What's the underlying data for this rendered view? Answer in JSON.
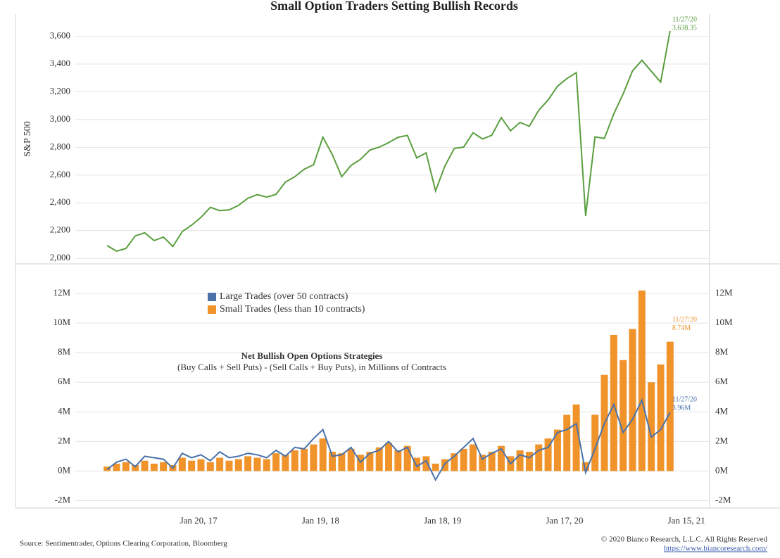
{
  "title": "Small Option Traders Setting Bullish Records",
  "source": "Source: Sentimentrader, Options Clearing Corporation, Bloomberg",
  "copyright": "© 2020 Bianco Research, L.L.C. All Rights Reserved",
  "url": "https://www.biancoresearch.com/",
  "chart_data": [
    {
      "type": "line",
      "ylabel": "S&P 500",
      "xlim": [
        "2016-01-18",
        "2021-03-25"
      ],
      "ylim": [
        1960,
        3760
      ],
      "yticks": [
        {
          "value": 2000,
          "label": "2,000"
        },
        {
          "value": 2200,
          "label": "2,200"
        },
        {
          "value": 2400,
          "label": "2,400"
        },
        {
          "value": 2600,
          "label": "2,600"
        },
        {
          "value": 2800,
          "label": "2,800"
        },
        {
          "value": 3000,
          "label": "3,000"
        },
        {
          "value": 3200,
          "label": "3,200"
        },
        {
          "value": 3400,
          "label": "3,400"
        },
        {
          "value": 3600,
          "label": "3,600"
        }
      ],
      "grid": true,
      "end_label": "11/27/20",
      "x": [
        "2016-04-22",
        "2016-05-20",
        "2016-06-17",
        "2016-07-15",
        "2016-08-12",
        "2016-09-09",
        "2016-10-07",
        "2016-11-04",
        "2016-12-02",
        "2016-12-30",
        "2017-01-27",
        "2017-02-24",
        "2017-03-24",
        "2017-04-21",
        "2017-05-19",
        "2017-06-16",
        "2017-07-14",
        "2017-08-11",
        "2017-09-08",
        "2017-10-06",
        "2017-11-03",
        "2017-12-01",
        "2017-12-29",
        "2018-01-26",
        "2018-02-23",
        "2018-03-23",
        "2018-04-20",
        "2018-05-18",
        "2018-06-15",
        "2018-07-13",
        "2018-08-10",
        "2018-09-07",
        "2018-10-05",
        "2018-11-02",
        "2018-11-30",
        "2018-12-28",
        "2019-01-25",
        "2019-02-22",
        "2019-03-22",
        "2019-04-19",
        "2019-05-17",
        "2019-06-14",
        "2019-07-12",
        "2019-08-09",
        "2019-09-06",
        "2019-10-04",
        "2019-11-01",
        "2019-11-29",
        "2019-12-27",
        "2020-01-24",
        "2020-02-21",
        "2020-03-20",
        "2020-04-17",
        "2020-05-15",
        "2020-06-12",
        "2020-07-10",
        "2020-08-07",
        "2020-09-04",
        "2020-10-02",
        "2020-10-30",
        "2020-11-27"
      ],
      "series": [
        {
          "name": "S&P 500",
          "color": "#5a9e3f",
          "values": [
            2092,
            2052,
            2071,
            2162,
            2184,
            2128,
            2153,
            2085,
            2192,
            2239,
            2295,
            2367,
            2344,
            2349,
            2382,
            2433,
            2459,
            2441,
            2461,
            2549,
            2588,
            2642,
            2674,
            2873,
            2747,
            2588,
            2670,
            2713,
            2780,
            2801,
            2833,
            2872,
            2886,
            2723,
            2760,
            2486,
            2665,
            2792,
            2801,
            2905,
            2860,
            2887,
            3014,
            2919,
            2979,
            2952,
            3067,
            3141,
            3240,
            3295,
            3338,
            2305,
            2875,
            2864,
            3041,
            3185,
            3351,
            3427,
            3348,
            3270,
            3638.35
          ],
          "end_value_label": "3,638.35"
        }
      ]
    },
    {
      "type": "combo",
      "subtitle": "Net Bullish Open Options Strategies",
      "note": "(Buy Calls + Sell Puts) - (Sell Calls + Buy Puts), in Millions of Contracts",
      "xlim": [
        "2016-01-18",
        "2021-03-25"
      ],
      "ylim": [
        -2.5,
        14
      ],
      "xticks": [
        {
          "value": "2017-01-20",
          "label": "Jan 20, 17"
        },
        {
          "value": "2018-01-19",
          "label": "Jan 19, 18"
        },
        {
          "value": "2019-01-18",
          "label": "Jan 18, 19"
        },
        {
          "value": "2020-01-17",
          "label": "Jan 17, 20"
        },
        {
          "value": "2021-01-15",
          "label": "Jan 15, 21"
        }
      ],
      "yticks": [
        {
          "value": -2,
          "label": "-2M"
        },
        {
          "value": 0,
          "label": "0M"
        },
        {
          "value": 2,
          "label": "2M"
        },
        {
          "value": 4,
          "label": "4M"
        },
        {
          "value": 6,
          "label": "6M"
        },
        {
          "value": 8,
          "label": "8M"
        },
        {
          "value": 10,
          "label": "10M"
        },
        {
          "value": 12,
          "label": "12M"
        }
      ],
      "y2lim": [
        -2.5,
        14
      ],
      "y2ticks": [
        {
          "value": -2,
          "label": "-2M"
        },
        {
          "value": 0,
          "label": "0M"
        },
        {
          "value": 2,
          "label": "2M"
        },
        {
          "value": 4,
          "label": "4M"
        },
        {
          "value": 6,
          "label": "6M"
        },
        {
          "value": 8,
          "label": "8M"
        },
        {
          "value": 10,
          "label": "10M"
        },
        {
          "value": 12,
          "label": "12M"
        }
      ],
      "grid": true,
      "legend": "top-left",
      "x": [
        "2016-04-22",
        "2016-05-20",
        "2016-06-17",
        "2016-07-15",
        "2016-08-12",
        "2016-09-09",
        "2016-10-07",
        "2016-11-04",
        "2016-12-02",
        "2016-12-30",
        "2017-01-27",
        "2017-02-24",
        "2017-03-24",
        "2017-04-21",
        "2017-05-19",
        "2017-06-16",
        "2017-07-14",
        "2017-08-11",
        "2017-09-08",
        "2017-10-06",
        "2017-11-03",
        "2017-12-01",
        "2017-12-29",
        "2018-01-26",
        "2018-02-23",
        "2018-03-23",
        "2018-04-20",
        "2018-05-18",
        "2018-06-15",
        "2018-07-13",
        "2018-08-10",
        "2018-09-07",
        "2018-10-05",
        "2018-11-02",
        "2018-11-30",
        "2018-12-28",
        "2019-01-25",
        "2019-02-22",
        "2019-03-22",
        "2019-04-19",
        "2019-05-17",
        "2019-06-14",
        "2019-07-12",
        "2019-08-09",
        "2019-09-06",
        "2019-10-04",
        "2019-11-01",
        "2019-11-29",
        "2019-12-27",
        "2020-01-24",
        "2020-02-21",
        "2020-03-20",
        "2020-04-17",
        "2020-05-15",
        "2020-06-12",
        "2020-07-10",
        "2020-08-07",
        "2020-09-04",
        "2020-10-02",
        "2020-10-30",
        "2020-11-27"
      ],
      "series": [
        {
          "name": "Large Trades (over 50 contracts)",
          "type": "line",
          "color": "#4a72a8",
          "end_label": "11/27/20",
          "end_value_label": "3.96M",
          "values": [
            0.1,
            0.6,
            0.8,
            0.3,
            1.0,
            0.9,
            0.8,
            0.2,
            1.2,
            0.9,
            1.1,
            0.7,
            1.3,
            0.9,
            1.0,
            1.2,
            1.1,
            0.9,
            1.4,
            1.0,
            1.6,
            1.5,
            2.2,
            2.8,
            1.0,
            1.1,
            1.6,
            0.6,
            1.2,
            1.4,
            2.0,
            1.3,
            1.6,
            0.3,
            0.7,
            -0.6,
            0.5,
            1.0,
            1.6,
            2.2,
            0.8,
            1.2,
            1.5,
            0.5,
            1.1,
            0.9,
            1.4,
            1.6,
            2.6,
            2.8,
            3.2,
            -0.1,
            1.5,
            3.2,
            4.5,
            2.6,
            3.5,
            4.8,
            2.3,
            2.8,
            3.96
          ]
        },
        {
          "name": "Small Trades (less than 10 contracts)",
          "type": "bar",
          "color": "#f0932b",
          "end_label": "11/27/20",
          "end_value_label": "8.74M",
          "values": [
            0.3,
            0.5,
            0.6,
            0.4,
            0.7,
            0.5,
            0.6,
            0.4,
            0.9,
            0.7,
            0.8,
            0.6,
            0.9,
            0.7,
            0.8,
            1.0,
            0.9,
            0.8,
            1.2,
            1.1,
            1.4,
            1.5,
            1.8,
            2.2,
            1.3,
            1.2,
            1.5,
            1.1,
            1.3,
            1.6,
            1.9,
            1.4,
            1.7,
            0.9,
            1.0,
            0.5,
            0.8,
            1.2,
            1.5,
            1.8,
            1.1,
            1.3,
            1.7,
            1.0,
            1.4,
            1.3,
            1.8,
            2.2,
            2.8,
            3.8,
            4.5,
            0.6,
            3.8,
            6.5,
            9.2,
            7.5,
            9.6,
            12.2,
            6.0,
            7.2,
            8.74
          ]
        }
      ]
    }
  ]
}
